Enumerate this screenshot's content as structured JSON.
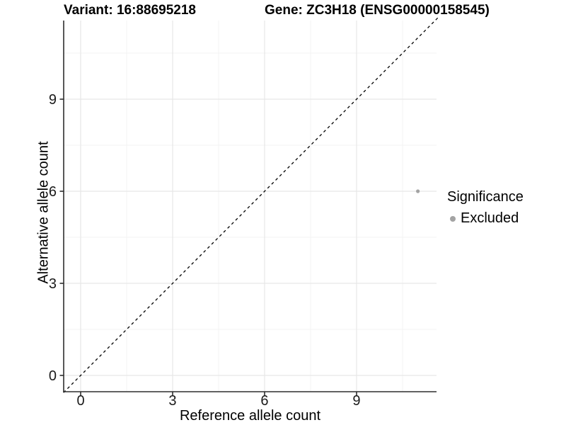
{
  "header": {
    "variant_title": "Variant: 16:88695218",
    "gene_title": "Gene: ZC3H18 (ENSG00000158545)"
  },
  "chart_data": {
    "type": "scatter",
    "xlabel": "Reference allele count",
    "ylabel": "Alternative allele count",
    "xlim": [
      -0.56,
      11.65
    ],
    "ylim": [
      -0.56,
      11.65
    ],
    "x_ticks": [
      0,
      3,
      6,
      9
    ],
    "y_ticks": [
      0,
      3,
      6,
      9
    ],
    "x_minor_ticks": [
      1.5,
      4.5,
      7.5,
      10.5
    ],
    "y_minor_ticks": [
      1.5,
      4.5,
      7.5,
      10.5
    ],
    "grid": true,
    "series": [
      {
        "name": "Excluded",
        "color": "#a3a3a3",
        "points": [
          {
            "x": 11,
            "y": 6
          }
        ]
      }
    ],
    "reference_line": {
      "type": "identity",
      "equation": "y = x",
      "style": "dashed",
      "color": "#000000"
    },
    "legend": {
      "title": "Significance",
      "position": "right",
      "entries": [
        {
          "label": "Excluded",
          "color": "#a3a3a3"
        }
      ]
    }
  },
  "colors": {
    "background": "#ffffff",
    "grid_major": "#e7e7e7",
    "grid_minor": "#f3f3f3",
    "axis": "#2e2e2e",
    "tick_label": "#1a1a1a",
    "point": "#a3a3a3",
    "text": "#000000"
  }
}
